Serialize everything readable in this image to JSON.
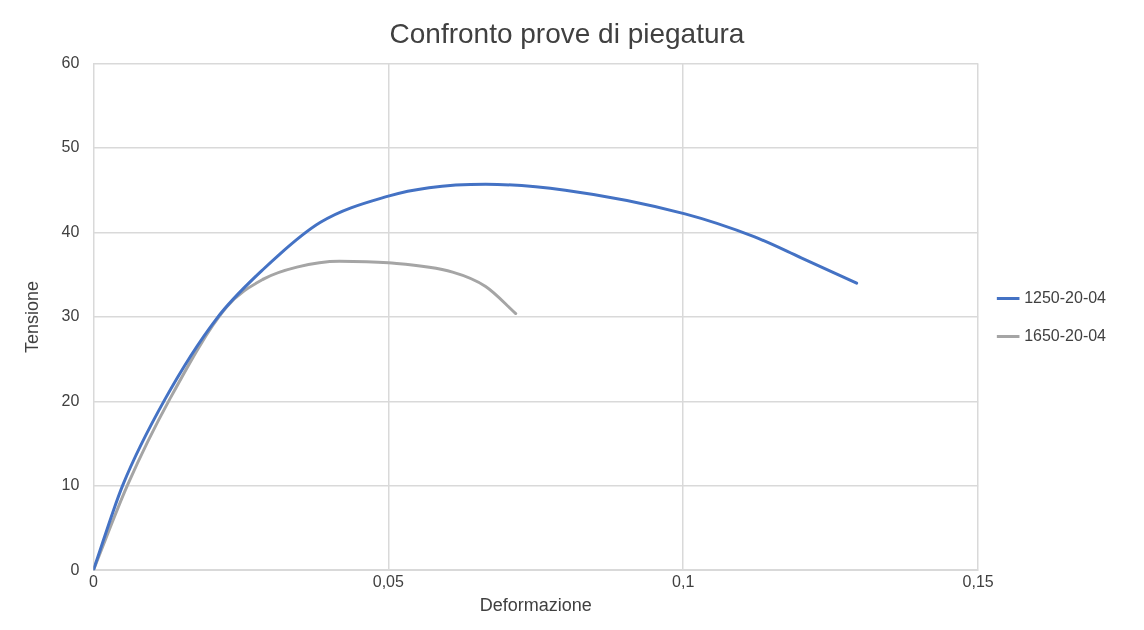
{
  "chart_data": {
    "type": "line",
    "title": "Confronto prove di piegatura",
    "xlabel": "Deformazione",
    "ylabel": "Tensione",
    "xlim": [
      0,
      0.15
    ],
    "xticks": [
      0,
      {
        "value": 0.05,
        "label": "0,05"
      },
      {
        "value": 0.1,
        "label": "0,1"
      },
      {
        "value": 0.15,
        "label": "0,15"
      }
    ],
    "ylim": [
      0,
      60
    ],
    "yticks": [
      0,
      10,
      20,
      30,
      40,
      50,
      60
    ],
    "grid": true,
    "legend": "right",
    "marker": "none",
    "line_style": "solid",
    "series": [
      {
        "name": "1250-20-04",
        "color": "#4472c4",
        "x": [
          0,
          0.005,
          0.0121,
          0.0209,
          0.0289,
          0.0385,
          0.05,
          0.0569,
          0.0665,
          0.08,
          0.1003,
          0.112,
          0.12,
          0.1294
        ],
        "values": [
          0,
          10.1,
          20.2,
          29.8,
          35.7,
          41.2,
          44.3,
          45.3,
          45.7,
          45.0,
          42.2,
          39.5,
          37.0,
          34.0
        ]
      },
      {
        "name": "1650-20-04",
        "color": "#a5a5a5",
        "x": [
          0,
          0.0058,
          0.0129,
          0.0225,
          0.0289,
          0.0345,
          0.0417,
          0.05,
          0.0609,
          0.0665,
          0.0716
        ],
        "values": [
          0,
          10.1,
          20.2,
          31.1,
          34.5,
          35.9,
          36.6,
          36.4,
          35.3,
          33.6,
          30.4
        ]
      }
    ]
  }
}
